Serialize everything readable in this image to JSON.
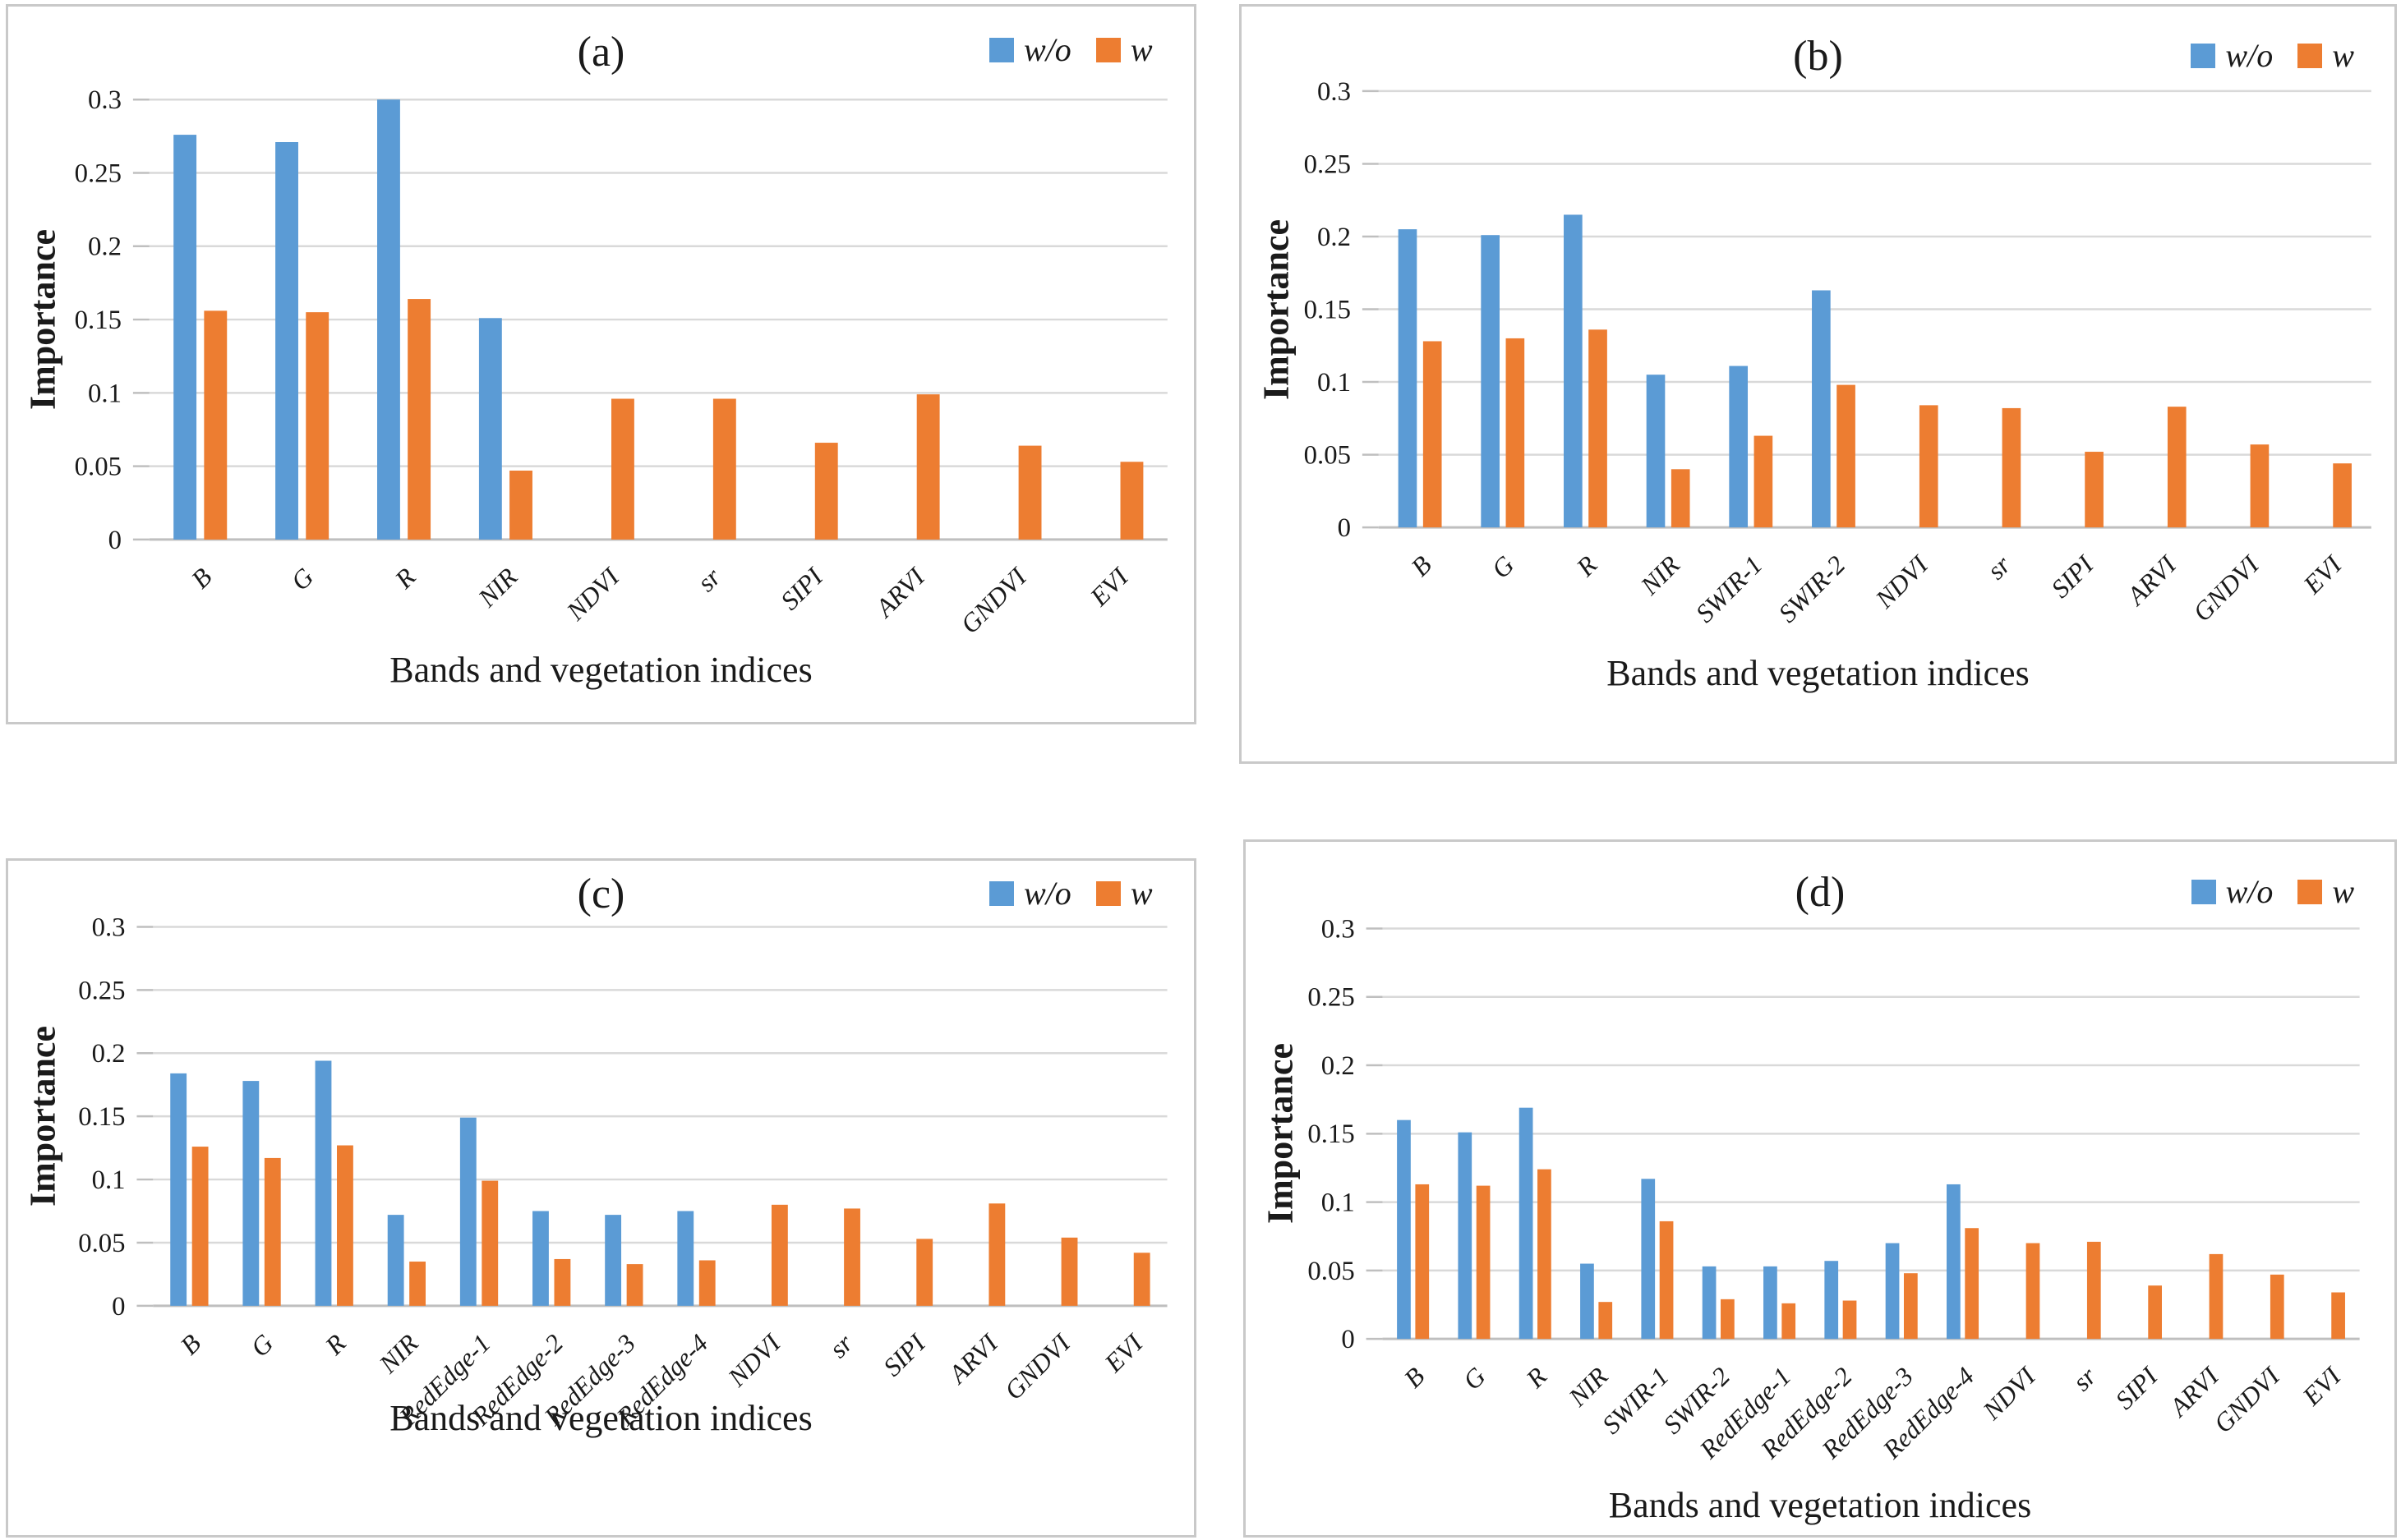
{
  "figure": {
    "background": "#ffffff",
    "panel_border_color": "#c9c9c9",
    "gridline_color": "#d9d9d9",
    "axis_line_color": "#bfbfbf",
    "text_color": "#1a1a1a",
    "legend_labels": [
      "w/o",
      "w"
    ],
    "series_colors": {
      "w/o": "#5B9BD5",
      "w": "#ED7D31"
    }
  },
  "chart_data": [
    {
      "type": "bar",
      "title": "(a)",
      "xlabel": "Bands and vegetation indices",
      "ylabel": "Importance",
      "ylim": [
        0,
        0.3
      ],
      "yticks": [
        "0",
        "0.05",
        "0.1",
        "0.15",
        "0.2",
        "0.25",
        "0.3"
      ],
      "grid": true,
      "legend_position": "top-right",
      "categories": [
        "B",
        "G",
        "R",
        "NIR",
        "NDVI",
        "sr",
        "SIPI",
        "ARVI",
        "GNDVI",
        "EVI"
      ],
      "series": [
        {
          "name": "w/o",
          "color": "#5B9BD5",
          "values": [
            0.276,
            0.271,
            0.3,
            0.151,
            null,
            null,
            null,
            null,
            null,
            null
          ]
        },
        {
          "name": "w",
          "color": "#ED7D31",
          "values": [
            0.156,
            0.155,
            0.164,
            0.047,
            0.096,
            0.096,
            0.066,
            0.099,
            0.064,
            0.053
          ]
        }
      ]
    },
    {
      "type": "bar",
      "title": "(b)",
      "xlabel": "Bands and vegetation indices",
      "ylabel": "Importance",
      "ylim": [
        0,
        0.3
      ],
      "yticks": [
        "0",
        "0.05",
        "0.1",
        "0.15",
        "0.2",
        "0.25",
        "0.3"
      ],
      "grid": true,
      "legend_position": "top-right",
      "categories": [
        "B",
        "G",
        "R",
        "NIR",
        "SWIR-1",
        "SWIR-2",
        "NDVI",
        "sr",
        "SIPI",
        "ARVI",
        "GNDVI",
        "EVI"
      ],
      "series": [
        {
          "name": "w/o",
          "color": "#5B9BD5",
          "values": [
            0.205,
            0.201,
            0.215,
            0.105,
            0.111,
            0.163,
            null,
            null,
            null,
            null,
            null,
            null
          ]
        },
        {
          "name": "w",
          "color": "#ED7D31",
          "values": [
            0.128,
            0.13,
            0.136,
            0.04,
            0.063,
            0.098,
            0.084,
            0.082,
            0.052,
            0.083,
            0.057,
            0.044
          ]
        }
      ]
    },
    {
      "type": "bar",
      "title": "(c)",
      "xlabel": "Bands and vegetation indices",
      "ylabel": "Importance",
      "ylim": [
        0,
        0.3
      ],
      "yticks": [
        "0",
        "0.05",
        "0.1",
        "0.15",
        "0.2",
        "0.25",
        "0.3"
      ],
      "grid": true,
      "legend_position": "top-right",
      "categories": [
        "B",
        "G",
        "R",
        "NIR",
        "RedEdge-1",
        "RedEdge-2",
        "RedEdge-3",
        "RedEdge-4",
        "NDVI",
        "sr",
        "SIPI",
        "ARVI",
        "GNDVI",
        "EVI"
      ],
      "series": [
        {
          "name": "w/o",
          "color": "#5B9BD5",
          "values": [
            0.184,
            0.178,
            0.194,
            0.072,
            0.149,
            0.075,
            0.072,
            0.075,
            null,
            null,
            null,
            null,
            null,
            null
          ]
        },
        {
          "name": "w",
          "color": "#ED7D31",
          "values": [
            0.126,
            0.117,
            0.127,
            0.035,
            0.099,
            0.037,
            0.033,
            0.036,
            0.08,
            0.077,
            0.053,
            0.081,
            0.054,
            0.042
          ]
        }
      ]
    },
    {
      "type": "bar",
      "title": "(d)",
      "xlabel": "Bands and vegetation indices",
      "ylabel": "Importance",
      "ylim": [
        0,
        0.3
      ],
      "yticks": [
        "0",
        "0.05",
        "0.1",
        "0.15",
        "0.2",
        "0.25",
        "0.3"
      ],
      "grid": true,
      "legend_position": "top-right",
      "categories": [
        "B",
        "G",
        "R",
        "NIR",
        "SWIR-1",
        "SWIR-2",
        "RedEdge-1",
        "RedEdge-2",
        "RedEdge-3",
        "RedEdge-4",
        "NDVI",
        "sr",
        "SIPI",
        "ARVI",
        "GNDVI",
        "EVI"
      ],
      "series": [
        {
          "name": "w/o",
          "color": "#5B9BD5",
          "values": [
            0.16,
            0.151,
            0.169,
            0.055,
            0.117,
            0.053,
            0.053,
            0.057,
            0.07,
            0.113,
            null,
            null,
            null,
            null,
            null,
            null
          ]
        },
        {
          "name": "w",
          "color": "#ED7D31",
          "values": [
            0.113,
            0.112,
            0.124,
            0.027,
            0.086,
            0.029,
            0.026,
            0.028,
            0.048,
            0.081,
            0.07,
            0.071,
            0.039,
            0.062,
            0.047,
            0.034
          ]
        }
      ]
    }
  ]
}
